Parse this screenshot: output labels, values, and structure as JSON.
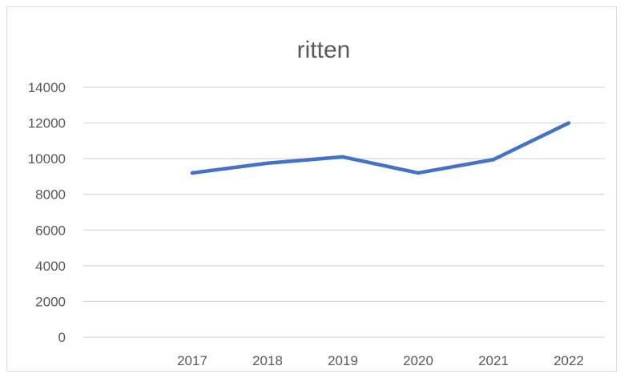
{
  "chart_data": {
    "type": "line",
    "title": "ritten",
    "xlabel": "",
    "ylabel": "",
    "categories": [
      "2017",
      "2018",
      "2019",
      "2020",
      "2021",
      "2022"
    ],
    "series": [
      {
        "values": [
          9200,
          9750,
          10100,
          9200,
          9950,
          12000
        ]
      }
    ],
    "ylim": [
      0,
      14000
    ],
    "yticks": [
      0,
      2000,
      4000,
      6000,
      8000,
      10000,
      12000,
      14000
    ],
    "ytick_labels": [
      "0",
      "2000",
      "4000",
      "6000",
      "8000",
      "10000",
      "12000",
      "14000"
    ],
    "grid": true,
    "legend": "none",
    "line_color": "#4472c4",
    "grid_color": "#d9d9d9",
    "text_color": "#595959"
  }
}
